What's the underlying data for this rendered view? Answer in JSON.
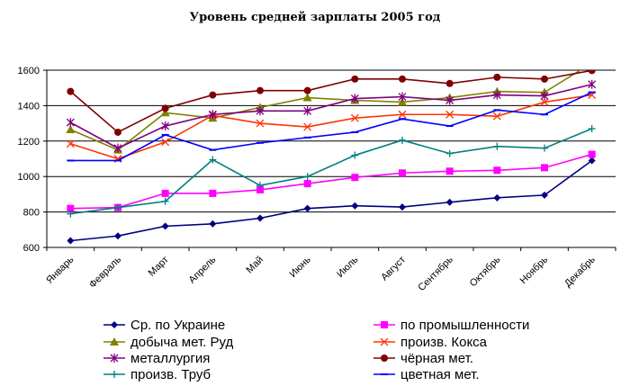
{
  "chart_data": {
    "type": "line",
    "title": "Уровень средней зарплаты 2005 год",
    "xlabel": "",
    "ylabel": "",
    "ylim": [
      600,
      1600
    ],
    "yticks": [
      600,
      800,
      1000,
      1200,
      1400,
      1600
    ],
    "grid": "horizontal",
    "legend_position": "bottom",
    "categories": [
      "Январь",
      "Февраль",
      "Март",
      "Апрель",
      "Май",
      "Июнь",
      "Июль",
      "Август",
      "Сентябрь",
      "Октябрь",
      "Ноябрь",
      "Декабрь"
    ],
    "series": [
      {
        "name": "Ср. по Украине",
        "color": "#000080",
        "marker": "diamond",
        "values": [
          638,
          665,
          720,
          733,
          765,
          820,
          835,
          828,
          855,
          880,
          895,
          1090
        ]
      },
      {
        "name": "по промышленности",
        "color": "#ff00ff",
        "marker": "square",
        "values": [
          820,
          825,
          905,
          905,
          925,
          960,
          995,
          1020,
          1030,
          1035,
          1050,
          1125
        ]
      },
      {
        "name": "добыча мет. Руд",
        "color": "#808000",
        "marker": "triangle",
        "values": [
          1265,
          1150,
          1360,
          1330,
          1390,
          1445,
          1430,
          1420,
          1445,
          1480,
          1475,
          1640
        ]
      },
      {
        "name": "произв. Кокса",
        "color": "#ff3300",
        "marker": "x",
        "values": [
          1185,
          1100,
          1195,
          1345,
          1300,
          1280,
          1330,
          1350,
          1350,
          1340,
          1420,
          1460
        ]
      },
      {
        "name": "металлургия",
        "color": "#800080",
        "marker": "star",
        "values": [
          1305,
          1160,
          1285,
          1350,
          1370,
          1370,
          1440,
          1450,
          1430,
          1460,
          1455,
          1520
        ]
      },
      {
        "name": "чёрная мет.",
        "color": "#800000",
        "marker": "circle",
        "values": [
          1480,
          1250,
          1385,
          1460,
          1485,
          1485,
          1550,
          1550,
          1525,
          1560,
          1550,
          1598
        ]
      },
      {
        "name": "произв. Труб",
        "color": "#008080",
        "marker": "plus",
        "values": [
          790,
          825,
          860,
          1095,
          950,
          1000,
          1120,
          1205,
          1130,
          1170,
          1160,
          1270
        ]
      },
      {
        "name": "цветная мет.",
        "color": "#0000ff",
        "marker": "dash",
        "values": [
          1090,
          1090,
          1235,
          1150,
          1190,
          1220,
          1250,
          1325,
          1285,
          1375,
          1350,
          1475
        ]
      }
    ]
  }
}
